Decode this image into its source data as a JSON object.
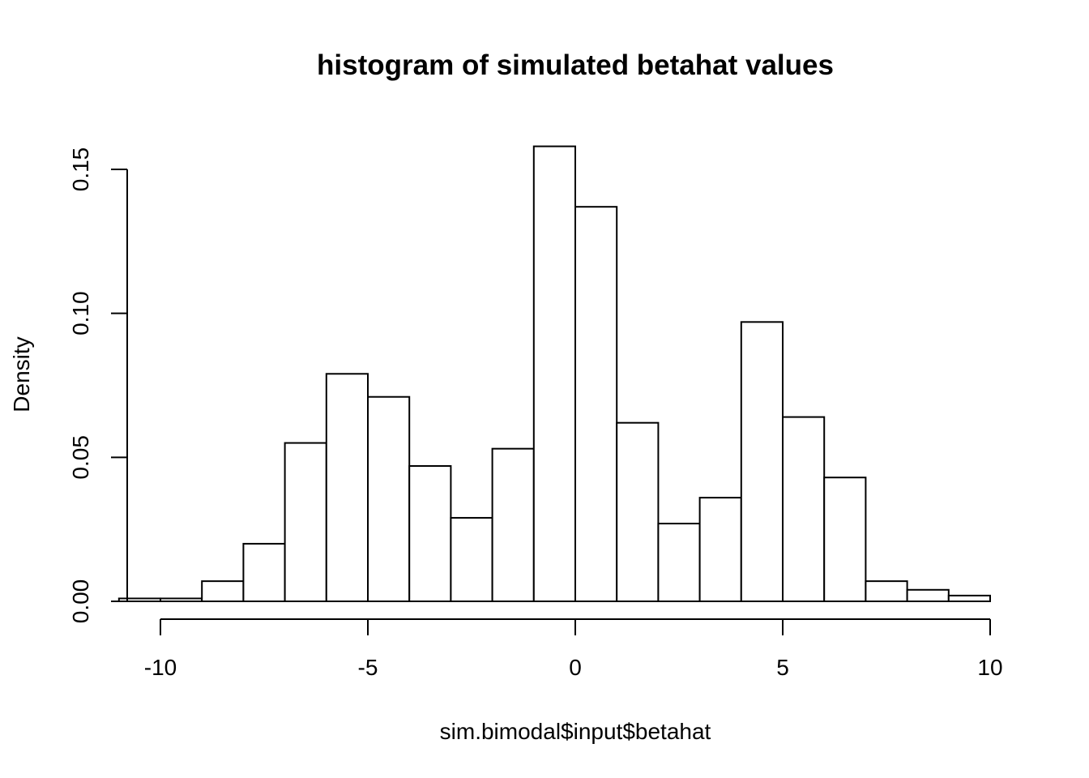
{
  "chart_data": {
    "type": "bar",
    "title": "histogram of simulated betahat values",
    "xlabel": "sim.bimodal$input$betahat",
    "ylabel": "Density",
    "xlim": [
      -11,
      10
    ],
    "ylim": [
      0,
      0.16
    ],
    "x_ticks": [
      -10,
      -5,
      0,
      5,
      10
    ],
    "x_tick_labels": [
      "-10",
      "-5",
      "0",
      "5",
      "10"
    ],
    "y_ticks": [
      0,
      0.05,
      0.1,
      0.15
    ],
    "y_tick_labels": [
      "0.00",
      "0.05",
      "0.10",
      "0.15"
    ],
    "bin_edges": [
      -11,
      -10,
      -9,
      -8,
      -7,
      -6,
      -5,
      -4,
      -3,
      -2,
      -1,
      0,
      1,
      2,
      3,
      4,
      5,
      6,
      7,
      8,
      9,
      10
    ],
    "values": [
      0.001,
      0.001,
      0.007,
      0.02,
      0.055,
      0.079,
      0.071,
      0.047,
      0.029,
      0.053,
      0.158,
      0.137,
      0.062,
      0.027,
      0.036,
      0.097,
      0.064,
      0.043,
      0.007,
      0.004,
      0.002
    ],
    "bar_fill": "#ffffff",
    "bar_stroke": "#000000",
    "grid": false,
    "legend": "none"
  }
}
